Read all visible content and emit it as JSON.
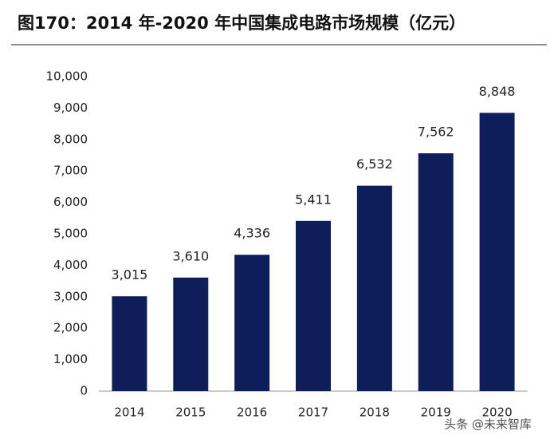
{
  "chart_data": {
    "type": "bar",
    "title": "图170：2014 年-2020 年中国集成电路市场规模（亿元）",
    "categories": [
      "2014",
      "2015",
      "2016",
      "2017",
      "2018",
      "2019",
      "2020"
    ],
    "values": [
      3015,
      3610,
      4336,
      5411,
      6532,
      7562,
      8848
    ],
    "value_labels": [
      "3,015",
      "3,610",
      "4,336",
      "5,411",
      "6,532",
      "7,562",
      "8,848"
    ],
    "color": "#0d1e5a",
    "ylim": [
      0,
      10000
    ],
    "yticks": [
      0,
      {
        "value": 1000,
        "label": "1,000"
      },
      {
        "value": 2000,
        "label": "2,000"
      },
      {
        "value": 3000,
        "label": "3,000"
      },
      {
        "value": 4000,
        "label": "4,000"
      },
      {
        "value": 5000,
        "label": "5,000"
      },
      {
        "value": 6000,
        "label": "6,000"
      },
      {
        "value": 7000,
        "label": "7,000"
      },
      {
        "value": 8000,
        "label": "8,000"
      },
      {
        "value": 9000,
        "label": "9,000"
      },
      {
        "value": 10000,
        "label": "10,000"
      }
    ],
    "grid": false,
    "watermark": "头条 @未来智库"
  }
}
